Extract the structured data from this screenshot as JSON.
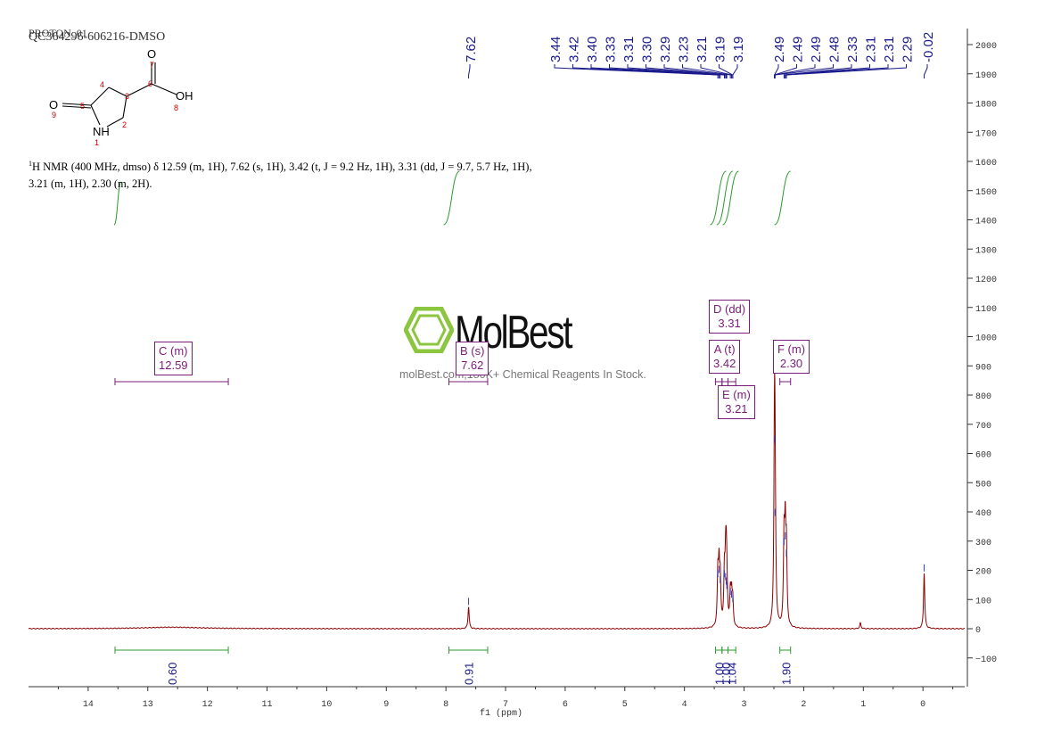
{
  "header": {
    "line1": "PROTON_01",
    "line2": "QC364296-606216-DMSO"
  },
  "description": {
    "nucleus_sup": "1",
    "text": "H NMR (400 MHz, dmso) δ 12.59 (m, 1H), 7.62 (s, 1H), 3.42 (t, J = 9.2 Hz, 1H), 3.31 (dd, J = 9.7, 5.7 Hz, 1H), 3.21 (m, 1H), 2.30 (m, 2H)."
  },
  "structure": {
    "atoms": [
      "O",
      "OH",
      "O",
      "NH"
    ],
    "numbers": [
      "1",
      "2",
      "3",
      "4",
      "5",
      "6",
      "7",
      "8",
      "9"
    ]
  },
  "watermark": {
    "brand": "MolBest",
    "tagline": "molBest.com,180K+ Chemical Reagents In Stock."
  },
  "colors": {
    "spectrum": "#8b0000",
    "peak_label": "#1a1a8c",
    "integral": "#2e9a2e",
    "multiplet": "#7a1c7a",
    "axis": "#333333"
  },
  "chart_data": {
    "type": "line",
    "title": "",
    "xlabel": "f1 (ppm)",
    "ylabel": "",
    "xlim": [
      15.0,
      -0.7
    ],
    "ylim": [
      -200,
      2050
    ],
    "x_reversed": true,
    "x_ticks": [
      14,
      13,
      12,
      11,
      10,
      9,
      8,
      7,
      6,
      5,
      4,
      3,
      2,
      1,
      0
    ],
    "y_ticks": [
      -100,
      0,
      100,
      200,
      300,
      400,
      500,
      600,
      700,
      800,
      900,
      1000,
      1100,
      1200,
      1300,
      1400,
      1500,
      1600,
      1700,
      1800,
      1900,
      2000
    ],
    "y_axis_side": "right",
    "peaks": [
      {
        "ppm": 12.59,
        "height": 5,
        "width": 0.6
      },
      {
        "ppm": 7.62,
        "height": 75
      },
      {
        "ppm": 3.44,
        "height": 170
      },
      {
        "ppm": 3.42,
        "height": 185
      },
      {
        "ppm": 3.4,
        "height": 150
      },
      {
        "ppm": 3.33,
        "height": 170
      },
      {
        "ppm": 3.31,
        "height": 160
      },
      {
        "ppm": 3.3,
        "height": 145
      },
      {
        "ppm": 3.29,
        "height": 130
      },
      {
        "ppm": 3.23,
        "height": 110
      },
      {
        "ppm": 3.21,
        "height": 100
      },
      {
        "ppm": 3.19,
        "height": 85
      },
      {
        "ppm": 2.49,
        "height": 630
      },
      {
        "ppm": 2.48,
        "height": 380
      },
      {
        "ppm": 2.33,
        "height": 280
      },
      {
        "ppm": 2.31,
        "height": 300
      },
      {
        "ppm": 2.29,
        "height": 240
      },
      {
        "ppm": 1.05,
        "height": 20
      },
      {
        "ppm": -0.02,
        "height": 190
      }
    ],
    "peak_labels": [
      "7.62",
      "3.44",
      "3.42",
      "3.40",
      "3.33",
      "3.31",
      "3.30",
      "3.29",
      "3.23",
      "3.21",
      "3.19",
      "3.19",
      "2.49",
      "2.49",
      "2.49",
      "2.48",
      "2.33",
      "2.31",
      "2.31",
      "2.29",
      "-0.02"
    ],
    "peak_label_ppm": [
      7.62,
      3.44,
      3.42,
      3.4,
      3.33,
      3.31,
      3.3,
      3.29,
      3.23,
      3.21,
      3.19,
      3.19,
      2.49,
      2.49,
      2.49,
      2.48,
      2.33,
      2.31,
      2.31,
      2.29,
      -0.02
    ],
    "integrals": [
      {
        "from": 13.55,
        "to": 11.65,
        "value": "0.60",
        "center": 12.59
      },
      {
        "from": 7.95,
        "to": 7.3,
        "value": "0.91",
        "center": 7.62
      },
      {
        "from": 3.48,
        "to": 3.37,
        "value": "1.00",
        "center": 3.42
      },
      {
        "from": 3.37,
        "to": 3.27,
        "value": "1.00",
        "center": 3.31
      },
      {
        "from": 3.27,
        "to": 3.14,
        "value": "1.04",
        "center": 3.21
      },
      {
        "from": 2.4,
        "to": 2.22,
        "value": "1.90",
        "center": 2.3
      }
    ],
    "multiplets": [
      {
        "label": "C (m)",
        "shift": "12.59",
        "ppm": 12.59,
        "from": 13.55,
        "to": 11.65
      },
      {
        "label": "B (s)",
        "shift": "7.62",
        "ppm": 7.62,
        "from": 7.95,
        "to": 7.3
      },
      {
        "label": "A (t)",
        "shift": "3.42",
        "ppm": 3.42,
        "from": 3.48,
        "to": 3.37
      },
      {
        "label": "D (dd)",
        "shift": "3.31",
        "ppm": 3.31,
        "from": 3.37,
        "to": 3.27
      },
      {
        "label": "E (m)",
        "shift": "3.21",
        "ppm": 3.21,
        "from": 3.27,
        "to": 3.14
      },
      {
        "label": "F (m)",
        "shift": "2.30",
        "ppm": 2.3,
        "from": 2.4,
        "to": 2.22
      }
    ]
  }
}
